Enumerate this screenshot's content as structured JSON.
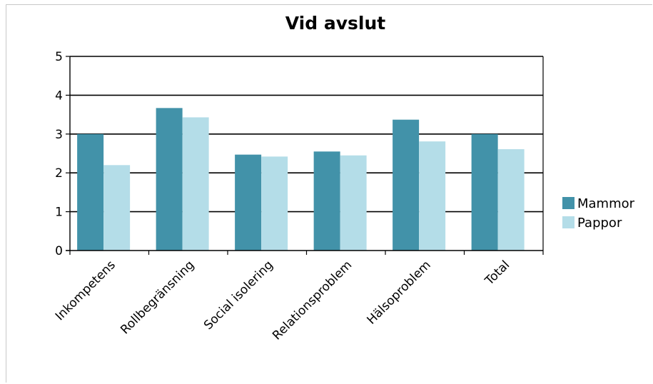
{
  "chart_data": {
    "type": "bar",
    "title": "Vid avslut",
    "categories": [
      "Inkompetens",
      "Rollbegränsning",
      "Social isolering",
      "Relationsproblem",
      "Hälsoproblem",
      "Total"
    ],
    "series": [
      {
        "name": "Mammor",
        "color": "#4292a9",
        "values": [
          3.0,
          3.67,
          2.47,
          2.55,
          3.37,
          3.0
        ]
      },
      {
        "name": "Pappor",
        "color": "#b4dde8",
        "values": [
          2.2,
          3.43,
          2.42,
          2.45,
          2.81,
          2.61
        ]
      }
    ],
    "yticks": [
      "0",
      "1",
      "2",
      "3",
      "4",
      "5"
    ],
    "ylim": [
      0,
      5
    ],
    "grid": true,
    "legend": "right"
  }
}
